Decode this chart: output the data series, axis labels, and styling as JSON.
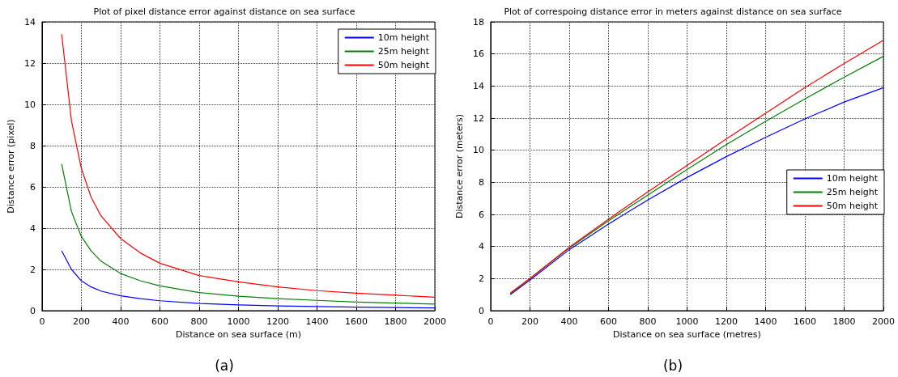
{
  "chart_data": [
    {
      "type": "line",
      "title": "Plot of pixel distance error against distance on sea surface",
      "xlabel": "Distance on sea surface (m)",
      "ylabel": "Distance error (pixel)",
      "annotations": [
        "(a)"
      ],
      "x": [
        100,
        150,
        200,
        250,
        300,
        400,
        500,
        600,
        800,
        1000,
        1200,
        1400,
        1600,
        1800,
        2000
      ],
      "series": [
        {
          "name": "10m height",
          "color": "#0000ff",
          "values": [
            2.9,
            2.0,
            1.45,
            1.15,
            0.95,
            0.72,
            0.58,
            0.48,
            0.35,
            0.28,
            0.23,
            0.2,
            0.17,
            0.15,
            0.13
          ]
        },
        {
          "name": "25m height",
          "color": "#008000",
          "values": [
            7.1,
            4.8,
            3.6,
            2.9,
            2.4,
            1.8,
            1.45,
            1.2,
            0.88,
            0.7,
            0.58,
            0.5,
            0.42,
            0.37,
            0.32
          ]
        },
        {
          "name": "50m height",
          "color": "#ff0000",
          "values": [
            13.4,
            9.2,
            6.9,
            5.5,
            4.6,
            3.5,
            2.8,
            2.3,
            1.7,
            1.4,
            1.15,
            0.97,
            0.85,
            0.75,
            0.65
          ]
        }
      ],
      "xlim": [
        0,
        2000
      ],
      "xticks": [
        0,
        200,
        400,
        600,
        800,
        1000,
        1200,
        1400,
        1600,
        1800,
        2000
      ],
      "ylim": [
        0,
        14
      ],
      "yticks": [
        0,
        2,
        4,
        6,
        8,
        10,
        12,
        14
      ],
      "grid": true,
      "legend": "top right",
      "line_style": "solid",
      "marker": "none"
    },
    {
      "type": "line",
      "title": "Plot of correspoing distance error in meters against distance on sea surface",
      "xlabel": "Distance on sea surface (metres)",
      "ylabel": "Distance error (meters)",
      "annotations": [
        "(b)"
      ],
      "x": [
        100,
        200,
        400,
        600,
        800,
        1000,
        1200,
        1400,
        1600,
        1800,
        2000
      ],
      "series": [
        {
          "name": "10m height",
          "color": "#0000ff",
          "values": [
            1.0,
            1.9,
            3.8,
            5.4,
            6.9,
            8.3,
            9.6,
            10.8,
            11.95,
            13.0,
            13.9
          ]
        },
        {
          "name": "25m height",
          "color": "#008000",
          "values": [
            1.05,
            2.0,
            3.9,
            5.6,
            7.2,
            8.8,
            10.35,
            11.8,
            13.2,
            14.55,
            15.85
          ]
        },
        {
          "name": "50m height",
          "color": "#ff0000",
          "values": [
            1.1,
            2.0,
            3.95,
            5.7,
            7.4,
            9.05,
            10.7,
            12.3,
            13.9,
            15.4,
            16.85
          ]
        }
      ],
      "xlim": [
        0,
        2000
      ],
      "xticks": [
        0,
        200,
        400,
        600,
        800,
        1000,
        1200,
        1400,
        1600,
        1800,
        2000
      ],
      "ylim": [
        0,
        18
      ],
      "yticks": [
        0,
        2,
        4,
        6,
        8,
        10,
        12,
        14,
        16,
        18
      ],
      "grid": true,
      "legend": "right",
      "line_style": "solid",
      "marker": "none"
    }
  ]
}
